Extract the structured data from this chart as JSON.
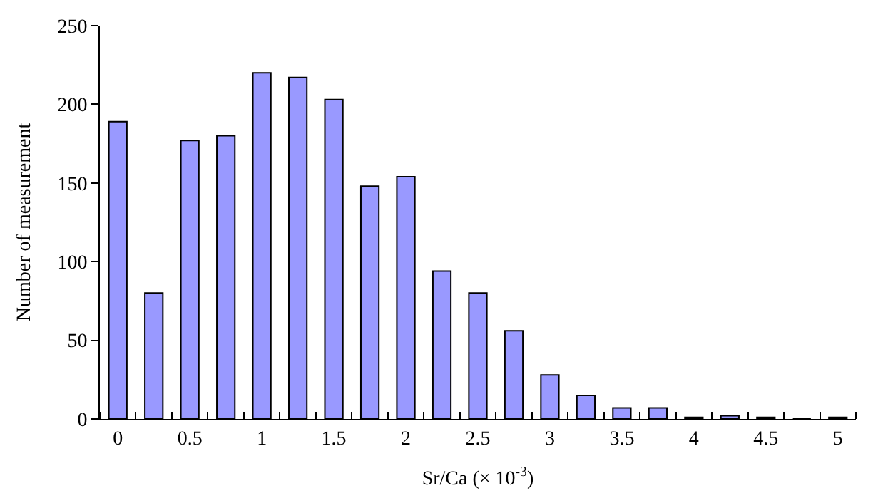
{
  "chart_data": {
    "type": "bar",
    "categories": [
      "0",
      null,
      "0.5",
      null,
      "1",
      null,
      "1.5",
      null,
      "2",
      null,
      "2.5",
      null,
      "3",
      null,
      "3.5",
      null,
      "4",
      null,
      "4.5",
      null,
      "5"
    ],
    "values": [
      189,
      80,
      177,
      180,
      220,
      217,
      203,
      148,
      154,
      94,
      80,
      56,
      28,
      15,
      7,
      7,
      1,
      2,
      1,
      0,
      1
    ],
    "color": "#9999ff",
    "xlabel": "Sr/Ca (× 10$^{-3}$)",
    "ylabel": "Number of measurement",
    "ylim": [
      0,
      250
    ],
    "yticks": [
      0,
      50,
      100,
      150,
      200,
      250
    ]
  }
}
